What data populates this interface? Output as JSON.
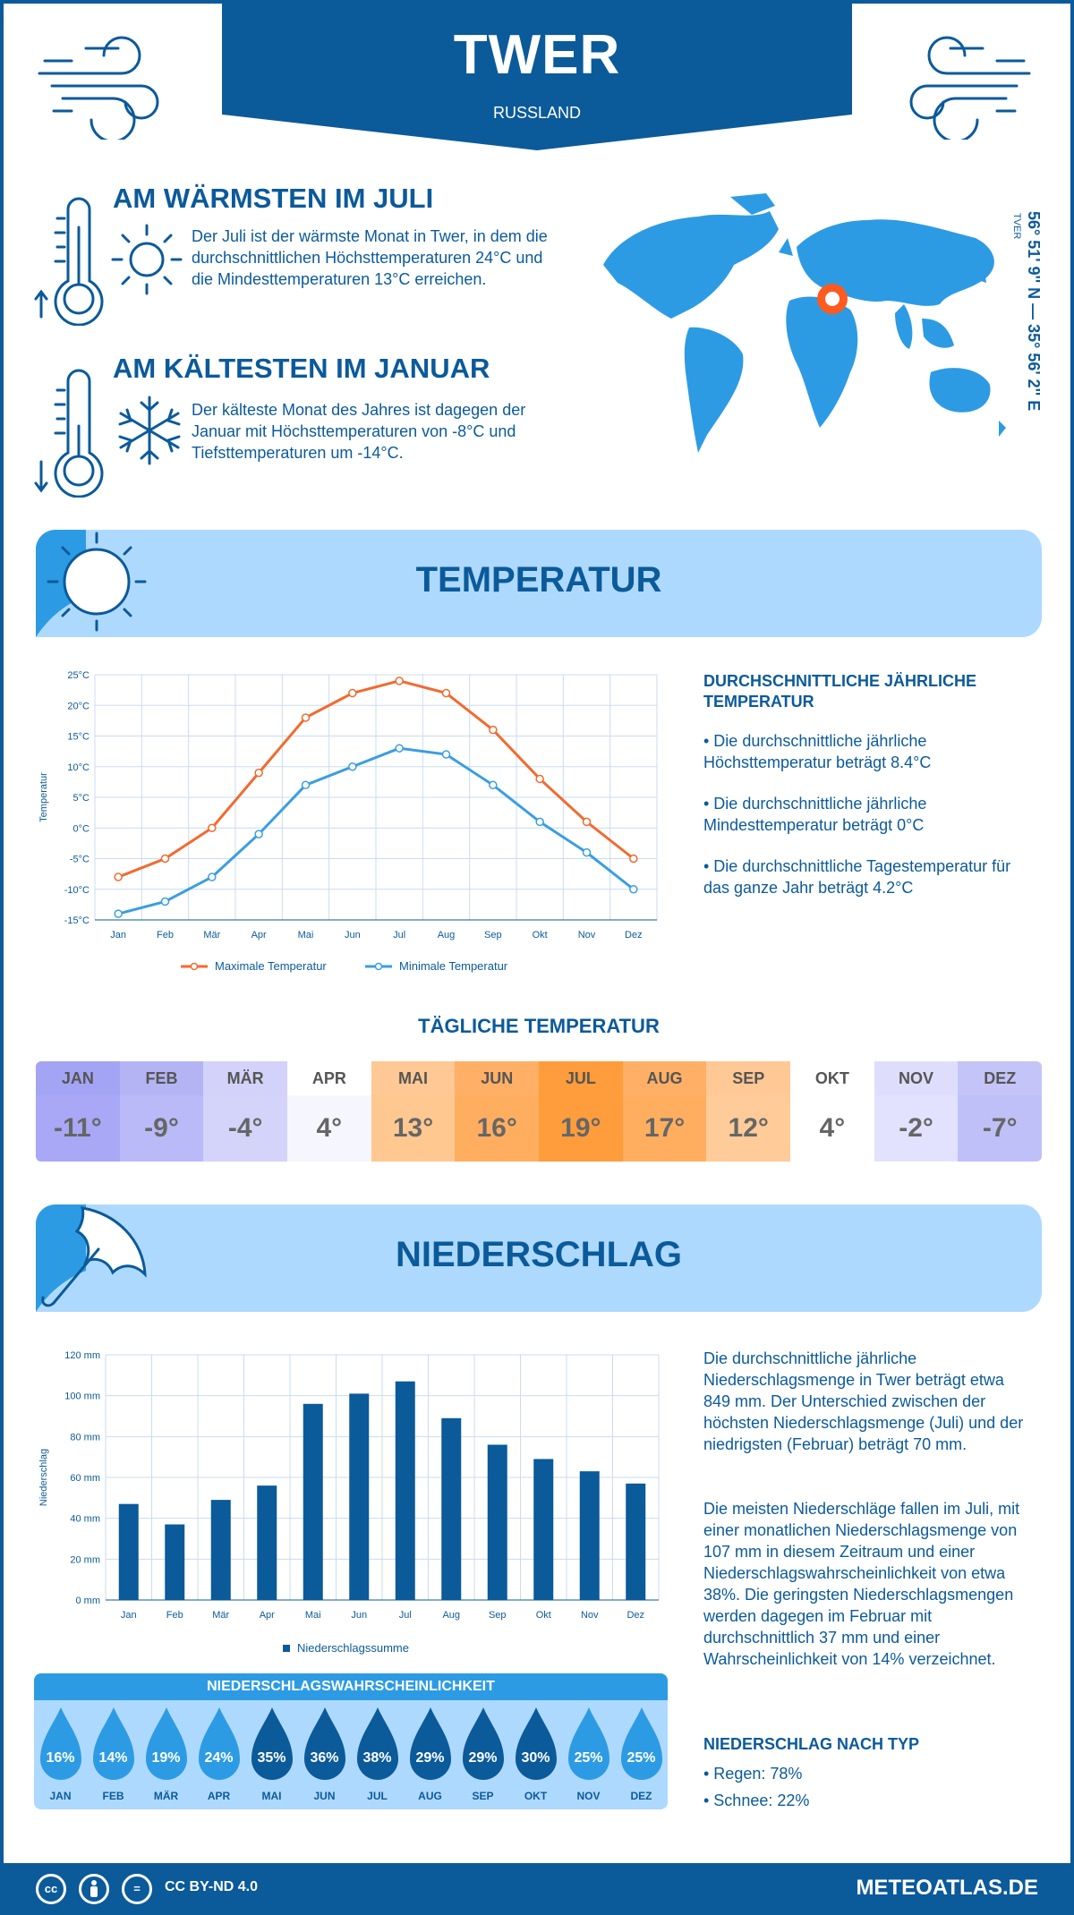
{
  "header": {
    "city": "TWER",
    "country": "RUSSLAND"
  },
  "colors": {
    "primary": "#0b5a9a",
    "light_band": "#aed9ff",
    "max_line": "#f26a2e",
    "min_line": "#3a9ee0",
    "bar": "#0b5a9a"
  },
  "warmest": {
    "title": "AM WÄRMSTEN IM JULI",
    "text": "Der Juli ist der wärmste Monat in Twer, in dem die durchschnittlichen Höchsttemperaturen 24°C und die Mindesttemperaturen 13°C erreichen."
  },
  "coldest": {
    "title": "AM KÄLTESTEN IM JANUAR",
    "text": "Der kälteste Monat des Jahres ist dagegen der Januar mit Höchsttemperaturen von -8°C und Tiefsttemperaturen um -14°C."
  },
  "coords": {
    "text": "56° 51' 9'' N — 35° 56' 2'' E",
    "city": "TVER"
  },
  "temperature_section": {
    "title": "TEMPERATUR",
    "side_heading": "DURCHSCHNITTLICHE JÄHRLICHE TEMPERATUR",
    "bullets": [
      "• Die durchschnittliche jährliche Höchsttemperatur beträgt 8.4°C",
      "• Die durchschnittliche jährliche Mindesttemperatur beträgt 0°C",
      "• Die durchschnittliche Tagestemperatur für das ganze Jahr beträgt 4.2°C"
    ]
  },
  "daily": {
    "title": "TÄGLICHE TEMPERATUR",
    "months": [
      "JAN",
      "FEB",
      "MÄR",
      "APR",
      "MAI",
      "JUN",
      "JUL",
      "AUG",
      "SEP",
      "OKT",
      "NOV",
      "DEZ"
    ],
    "values": [
      "-11°",
      "-9°",
      "-4°",
      "4°",
      "13°",
      "16°",
      "19°",
      "17°",
      "12°",
      "4°",
      "-2°",
      "-7°"
    ],
    "head_colors": [
      "#a4a4f4",
      "#b4b4f4",
      "#d2d2fa",
      "#ffffff",
      "#ffc894",
      "#ffb066",
      "#ff9c3c",
      "#ffb066",
      "#ffc894",
      "#ffffff",
      "#dedefc",
      "#c4c4f8"
    ],
    "val_colors": [
      "#a8a8f6",
      "#babaf8",
      "#d4d4fa",
      "#f6f6fe",
      "#ffc890",
      "#ffae60",
      "#ff9c3c",
      "#ffae60",
      "#ffcb98",
      "#ffffff",
      "#e2e2fe",
      "#c0c0f8"
    ]
  },
  "precip_section": {
    "title": "NIEDERSCHLAG",
    "paragraph1": "Die durchschnittliche jährliche Niederschlagsmenge in Twer beträgt etwa 849 mm. Der Unterschied zwischen der höchsten Niederschlagsmenge (Juli) und der niedrigsten (Februar) beträgt 70 mm.",
    "paragraph2": "Die meisten Niederschläge fallen im Juli, mit einer monatlichen Niederschlagsmenge von 107 mm in diesem Zeitraum und einer Niederschlagswahrscheinlichkeit von etwa 38%. Die geringsten Niederschlagsmengen werden dagegen im Februar mit durchschnittlich 37 mm und einer Wahrscheinlichkeit von 14% verzeichnet.",
    "type_heading": "NIEDERSCHLAG NACH TYP",
    "types": [
      "• Regen: 78%",
      "• Schnee: 22%"
    ],
    "prob_title": "NIEDERSCHLAGSWAHRSCHEINLICHKEIT",
    "prob_months": [
      "JAN",
      "FEB",
      "MÄR",
      "APR",
      "MAI",
      "JUN",
      "JUL",
      "AUG",
      "SEP",
      "OKT",
      "NOV",
      "DEZ"
    ],
    "prob_values": [
      "16%",
      "14%",
      "19%",
      "24%",
      "35%",
      "36%",
      "38%",
      "29%",
      "29%",
      "30%",
      "25%",
      "25%"
    ],
    "prob_colors": [
      "#2d9be3",
      "#2d9be3",
      "#2d9be3",
      "#2d9be3",
      "#0b5a9a",
      "#0b5a9a",
      "#0b5a9a",
      "#0b5a9a",
      "#0b5a9a",
      "#0b5a9a",
      "#2d9be3",
      "#2d9be3"
    ]
  },
  "footer": {
    "license": "CC BY-ND 4.0",
    "site": "METEOATLAS.DE",
    "cc_label": "cc",
    "eq_label": "="
  },
  "chart_data": [
    {
      "type": "line",
      "categories": [
        "Jan",
        "Feb",
        "Mär",
        "Apr",
        "Mai",
        "Jun",
        "Jul",
        "Aug",
        "Sep",
        "Okt",
        "Nov",
        "Dez"
      ],
      "series": [
        {
          "name": "Maximale Temperatur",
          "values": [
            -8,
            -5,
            0,
            9,
            18,
            22,
            24,
            22,
            16,
            8,
            1,
            -5
          ]
        },
        {
          "name": "Minimale Temperatur",
          "values": [
            -14,
            -12,
            -8,
            -1,
            7,
            10,
            13,
            12,
            7,
            1,
            -4,
            -10
          ]
        }
      ],
      "ylabel": "Temperatur",
      "ylim": [
        -15,
        25
      ],
      "yticks": [
        "-15°C",
        "-10°C",
        "-5°C",
        "0°C",
        "5°C",
        "10°C",
        "15°C",
        "20°C",
        "25°C"
      ],
      "grid": true,
      "legend": "bottom"
    },
    {
      "type": "bar",
      "categories": [
        "Jan",
        "Feb",
        "Mär",
        "Apr",
        "Mai",
        "Jun",
        "Jul",
        "Aug",
        "Sep",
        "Okt",
        "Nov",
        "Dez"
      ],
      "series": [
        {
          "name": "Niederschlagssumme",
          "values": [
            47,
            37,
            49,
            56,
            96,
            101,
            107,
            89,
            76,
            69,
            63,
            57
          ]
        }
      ],
      "ylabel": "Niederschlag",
      "ylim": [
        0,
        120
      ],
      "yticks": [
        "0 mm",
        "20 mm",
        "40 mm",
        "60 mm",
        "80 mm",
        "100 mm",
        "120 mm"
      ],
      "grid": true,
      "legend": "bottom"
    }
  ]
}
